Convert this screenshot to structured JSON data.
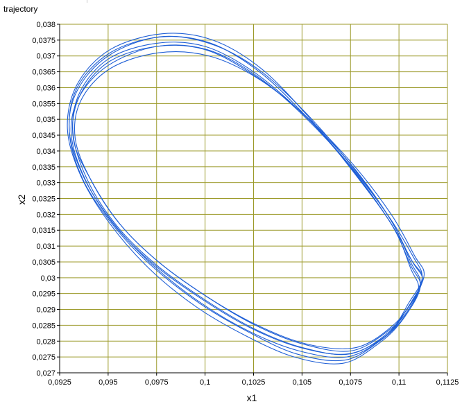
{
  "panel": {
    "title": "trajectory"
  },
  "chart_data": {
    "type": "line",
    "title": "",
    "xlabel": "x1",
    "ylabel": "x2",
    "xlim": [
      0.0925,
      0.1125
    ],
    "ylim": [
      0.027,
      0.038
    ],
    "x_ticks": [
      "0,0925",
      "0,095",
      "0,0975",
      "0,1",
      "0,1025",
      "0,105",
      "0,1075",
      "0,11",
      "0,1125"
    ],
    "y_ticks": [
      "0,038",
      "0,0375",
      "0,037",
      "0,0365",
      "0,036",
      "0,0355",
      "0,035",
      "0,0345",
      "0,034",
      "0,0335",
      "0,033",
      "0,0325",
      "0,032",
      "0,0315",
      "0,031",
      "0,0305",
      "0,03",
      "0,0295",
      "0,029",
      "0,0285",
      "0,028",
      "0,0275",
      "0,027"
    ],
    "grid": true,
    "colors": {
      "grid": "#9c9a2a",
      "line": "#1f5fd6",
      "plot_bg": "#ffffff"
    },
    "series": [
      {
        "loops": [
          {
            "points": [
              [
                0.1112,
                0.03
              ],
              [
                0.1105,
                0.0292
              ],
              [
                0.1095,
                0.0283
              ],
              [
                0.1075,
                0.0276
              ],
              [
                0.105,
                0.0278
              ],
              [
                0.1025,
                0.0284
              ],
              [
                0.1,
                0.0293
              ],
              [
                0.0975,
                0.0304
              ],
              [
                0.0955,
                0.0316
              ],
              [
                0.094,
                0.033
              ],
              [
                0.0932,
                0.0345
              ],
              [
                0.0935,
                0.0358
              ],
              [
                0.095,
                0.0369
              ],
              [
                0.0975,
                0.0374
              ],
              [
                0.1,
                0.0373
              ],
              [
                0.1025,
                0.0365
              ],
              [
                0.105,
                0.0352
              ],
              [
                0.1075,
                0.0336
              ],
              [
                0.1095,
                0.0319
              ],
              [
                0.1106,
                0.0306
              ]
            ]
          },
          {
            "points": [
              [
                0.1111,
                0.0298
              ],
              [
                0.1103,
                0.0289
              ],
              [
                0.1092,
                0.0281
              ],
              [
                0.1073,
                0.0275
              ],
              [
                0.1048,
                0.0277
              ],
              [
                0.1023,
                0.0283
              ],
              [
                0.0998,
                0.0292
              ],
              [
                0.0973,
                0.0304
              ],
              [
                0.0953,
                0.0317
              ],
              [
                0.0938,
                0.0331
              ],
              [
                0.093,
                0.0346
              ],
              [
                0.0934,
                0.0359
              ],
              [
                0.095,
                0.037
              ],
              [
                0.0976,
                0.0376
              ],
              [
                0.1002,
                0.0374
              ],
              [
                0.1027,
                0.0366
              ],
              [
                0.1052,
                0.0352
              ],
              [
                0.1076,
                0.0335
              ],
              [
                0.1096,
                0.0318
              ],
              [
                0.1106,
                0.0305
              ]
            ]
          },
          {
            "points": [
              [
                0.111,
                0.0296
              ],
              [
                0.1101,
                0.0286
              ],
              [
                0.1089,
                0.0279
              ],
              [
                0.1071,
                0.0273
              ],
              [
                0.1046,
                0.0275
              ],
              [
                0.102,
                0.0282
              ],
              [
                0.0995,
                0.0291
              ],
              [
                0.0971,
                0.0303
              ],
              [
                0.0951,
                0.0317
              ],
              [
                0.0936,
                0.0332
              ],
              [
                0.0929,
                0.0347
              ],
              [
                0.0934,
                0.0361
              ],
              [
                0.0951,
                0.0372
              ],
              [
                0.0978,
                0.0377
              ],
              [
                0.1004,
                0.0375
              ],
              [
                0.1029,
                0.0366
              ],
              [
                0.1053,
                0.0351
              ],
              [
                0.1077,
                0.0333
              ],
              [
                0.1097,
                0.0316
              ],
              [
                0.1106,
                0.0303
              ]
            ]
          },
          {
            "points": [
              [
                0.1113,
                0.0301
              ],
              [
                0.1107,
                0.0293
              ],
              [
                0.1097,
                0.0285
              ],
              [
                0.1078,
                0.0278
              ],
              [
                0.1053,
                0.0279
              ],
              [
                0.1027,
                0.0285
              ],
              [
                0.1001,
                0.0294
              ],
              [
                0.0976,
                0.0305
              ],
              [
                0.0956,
                0.0317
              ],
              [
                0.0941,
                0.0331
              ],
              [
                0.0933,
                0.0344
              ],
              [
                0.0936,
                0.0356
              ],
              [
                0.0951,
                0.0366
              ],
              [
                0.0976,
                0.0371
              ],
              [
                0.1002,
                0.037
              ],
              [
                0.1027,
                0.0363
              ],
              [
                0.1052,
                0.0351
              ],
              [
                0.1076,
                0.0336
              ],
              [
                0.1096,
                0.032
              ],
              [
                0.1108,
                0.0307
              ]
            ]
          },
          {
            "points": [
              [
                0.1112,
                0.0299
              ],
              [
                0.1104,
                0.029
              ],
              [
                0.1094,
                0.0282
              ],
              [
                0.1074,
                0.0276
              ],
              [
                0.1049,
                0.0278
              ],
              [
                0.1024,
                0.0284
              ],
              [
                0.0999,
                0.0293
              ],
              [
                0.0974,
                0.0304
              ],
              [
                0.0954,
                0.0316
              ],
              [
                0.0939,
                0.033
              ],
              [
                0.0931,
                0.0345
              ],
              [
                0.0935,
                0.0357
              ],
              [
                0.095,
                0.0367
              ],
              [
                0.0975,
                0.0373
              ],
              [
                0.1001,
                0.0372
              ],
              [
                0.1026,
                0.0364
              ],
              [
                0.1051,
                0.0351
              ],
              [
                0.1075,
                0.0335
              ],
              [
                0.1095,
                0.0318
              ],
              [
                0.1107,
                0.0305
              ]
            ]
          },
          {
            "points": [
              [
                0.1111,
                0.0297
              ],
              [
                0.1102,
                0.0287
              ],
              [
                0.109,
                0.028
              ],
              [
                0.1072,
                0.0274
              ],
              [
                0.1047,
                0.0276
              ],
              [
                0.1022,
                0.0283
              ],
              [
                0.0997,
                0.0292
              ],
              [
                0.0972,
                0.0304
              ],
              [
                0.0952,
                0.0317
              ],
              [
                0.0937,
                0.0331
              ],
              [
                0.093,
                0.0346
              ],
              [
                0.0934,
                0.036
              ],
              [
                0.0951,
                0.0371
              ],
              [
                0.0977,
                0.0376
              ],
              [
                0.1003,
                0.0374
              ],
              [
                0.1028,
                0.0365
              ],
              [
                0.1052,
                0.0351
              ],
              [
                0.1076,
                0.0334
              ],
              [
                0.1096,
                0.0317
              ],
              [
                0.1106,
                0.0304
              ]
            ]
          },
          {
            "points": [
              [
                0.1112,
                0.03
              ],
              [
                0.1106,
                0.0291
              ],
              [
                0.1096,
                0.0284
              ],
              [
                0.1076,
                0.0277
              ],
              [
                0.1051,
                0.0279
              ],
              [
                0.1026,
                0.0285
              ],
              [
                0.1001,
                0.0294
              ],
              [
                0.0976,
                0.0305
              ],
              [
                0.0956,
                0.0317
              ],
              [
                0.0941,
                0.0331
              ],
              [
                0.0932,
                0.0344
              ],
              [
                0.0935,
                0.0357
              ],
              [
                0.095,
                0.0368
              ],
              [
                0.0975,
                0.0373
              ],
              [
                0.1,
                0.0372
              ],
              [
                0.1025,
                0.0364
              ],
              [
                0.105,
                0.0352
              ],
              [
                0.1074,
                0.0336
              ],
              [
                0.1094,
                0.032
              ],
              [
                0.1107,
                0.0307
              ]
            ]
          }
        ]
      }
    ]
  }
}
